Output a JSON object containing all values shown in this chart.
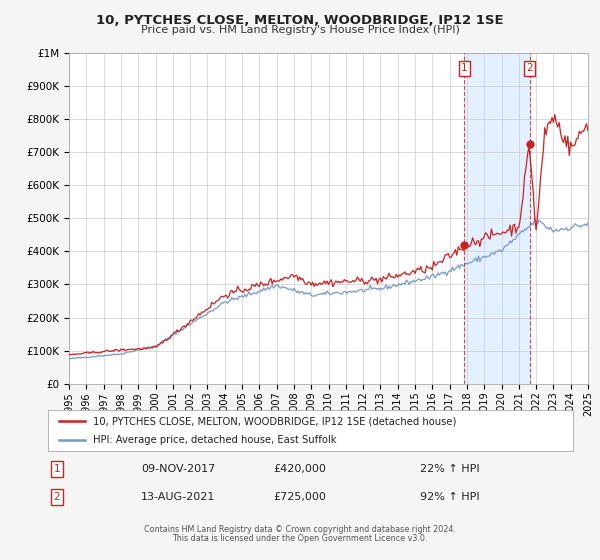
{
  "title": "10, PYTCHES CLOSE, MELTON, WOODBRIDGE, IP12 1SE",
  "subtitle": "Price paid vs. HM Land Registry's House Price Index (HPI)",
  "ylim": [
    0,
    1000000
  ],
  "xlim_start": 1995,
  "xlim_end": 2025,
  "plot_bg_color": "#ffffff",
  "fig_bg_color": "#f5f5f5",
  "grid_color": "#cccccc",
  "hpi_color": "#7799cc",
  "price_color": "#cc2222",
  "span_color": "#ddeeff",
  "sale1_date": 2017.86,
  "sale1_price": 420000,
  "sale2_date": 2021.62,
  "sale2_price": 725000,
  "legend_price_label": "10, PYTCHES CLOSE, MELTON, WOODBRIDGE, IP12 1SE (detached house)",
  "legend_hpi_label": "HPI: Average price, detached house, East Suffolk",
  "annotation1_date": "09-NOV-2017",
  "annotation1_price": "£420,000",
  "sale1_pct": "22%",
  "annotation2_date": "13-AUG-2021",
  "annotation2_price": "£725,000",
  "sale2_pct": "92%",
  "footnote1": "Contains HM Land Registry data © Crown copyright and database right 2024.",
  "footnote2": "This data is licensed under the Open Government Licence v3.0.",
  "ytick_labels": [
    "£0",
    "£100K",
    "£200K",
    "£300K",
    "£400K",
    "£500K",
    "£600K",
    "£700K",
    "£800K",
    "£900K",
    "£1M"
  ],
  "ytick_values": [
    0,
    100000,
    200000,
    300000,
    400000,
    500000,
    600000,
    700000,
    800000,
    900000,
    1000000
  ]
}
